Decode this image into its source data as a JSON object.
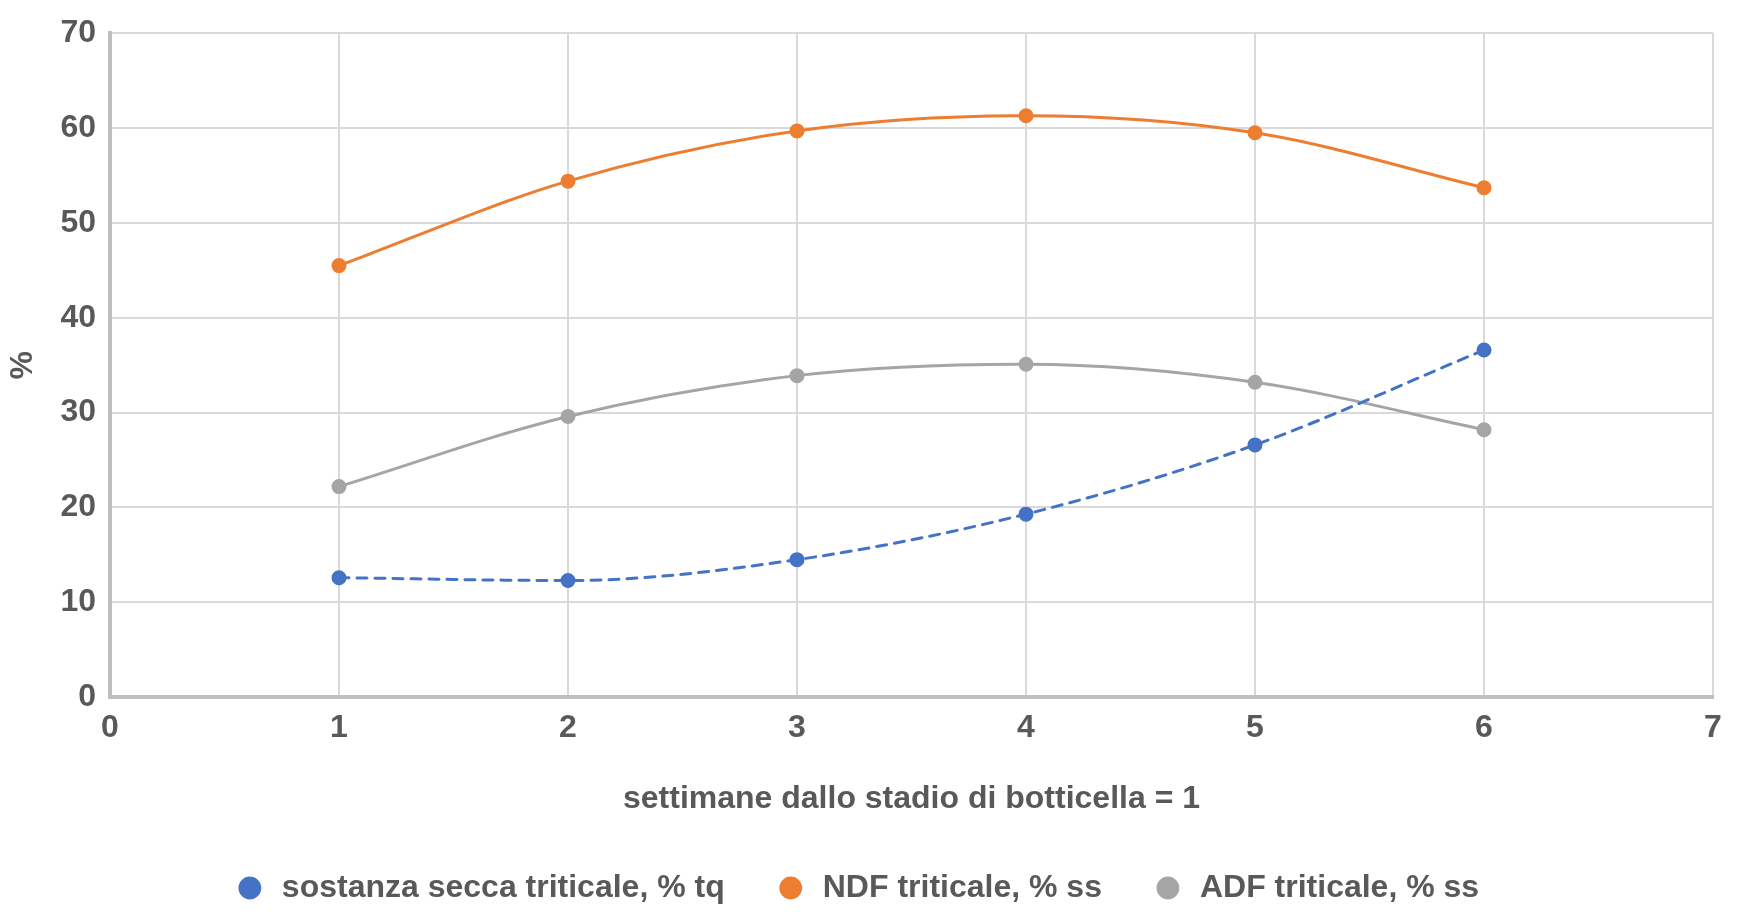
{
  "chart_data": {
    "type": "line",
    "xlabel": "settimane dallo stadio di botticella = 1",
    "ylabel": "%",
    "x": [
      1,
      2,
      3,
      4,
      5,
      6
    ],
    "xlim": [
      0,
      7
    ],
    "xticks": [
      0,
      1,
      2,
      3,
      4,
      5,
      6,
      7
    ],
    "ylim": [
      0,
      70
    ],
    "yticks": [
      0,
      10,
      20,
      30,
      40,
      50,
      60,
      70
    ],
    "grid": true,
    "legend": "bottom",
    "marker": "circle",
    "series": [
      {
        "name": "sostanza secca triticale, % tq",
        "color": "#4472c4",
        "line_style": "dashed",
        "values": [
          12.6,
          12.3,
          14.5,
          19.3,
          26.6,
          36.6
        ]
      },
      {
        "name": "NDF triticale, % ss",
        "color": "#ed7d31",
        "line_style": "solid",
        "values": [
          45.5,
          54.4,
          59.7,
          61.3,
          59.5,
          53.7
        ]
      },
      {
        "name": "ADF triticale, % ss",
        "color": "#a5a5a5",
        "line_style": "solid",
        "values": [
          22.2,
          29.6,
          33.9,
          35.1,
          33.2,
          28.2
        ]
      }
    ]
  }
}
